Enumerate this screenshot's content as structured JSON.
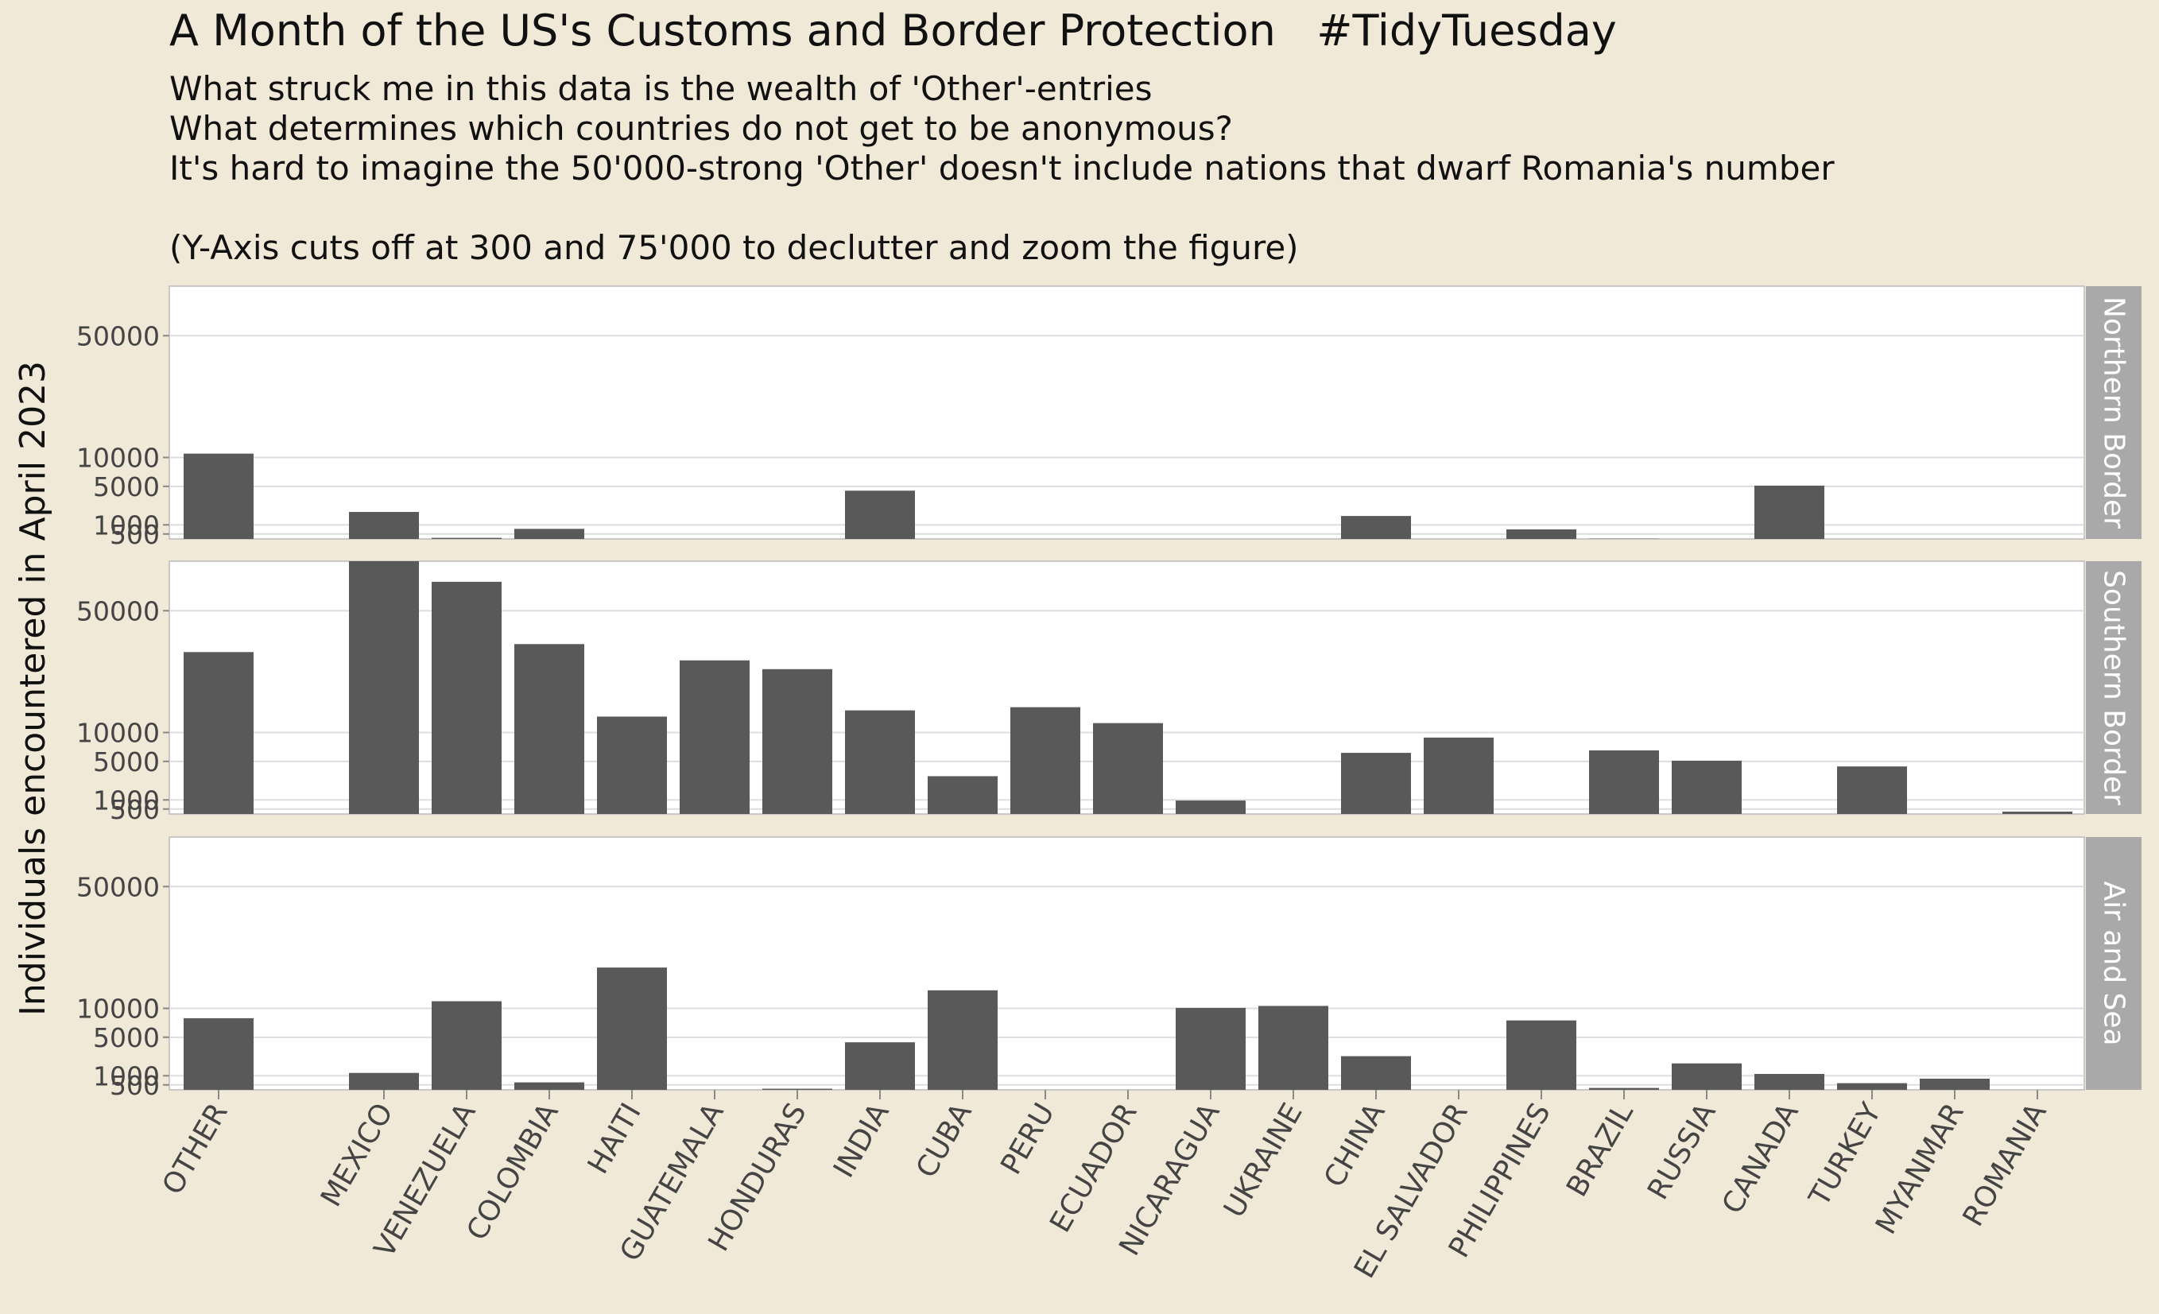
{
  "chart_data": {
    "type": "bar",
    "title": "A Month of the US's Customs and Border Protection   #TidyTuesday",
    "subtitle_lines": [
      "What struck me in this data is the wealth of 'Other'-entries",
      "What determines which countries do not get to be anonymous?",
      "It's hard to imagine the 50'000-strong 'Other' doesn't include nations that dwarf Romania's number",
      "",
      "(Y-Axis cuts off at 300 and 75'000 to declutter and zoom the figure)"
    ],
    "xlabel": "",
    "ylabel": "Individuals encountered in April 2023",
    "y_scale": "sqrt",
    "ylim": [
      300,
      75000
    ],
    "y_ticks": [
      500,
      1000,
      5000,
      10000,
      50000
    ],
    "y_tick_labels": [
      "500",
      "1000",
      "5000",
      "10000",
      "50000"
    ],
    "grid": true,
    "categories": [
      "OTHER",
      "",
      "MEXICO",
      "VENEZUELA",
      "COLOMBIA",
      "HAITI",
      "GUATEMALA",
      "HONDURAS",
      "INDIA",
      "CUBA",
      "PERU",
      "ECUADOR",
      "NICARAGUA",
      "UKRAINE",
      "CHINA",
      "EL SALVADOR",
      "PHILIPPINES",
      "BRAZIL",
      "RUSSIA",
      "CANADA",
      "TURKEY",
      "MYANMAR",
      "ROMANIA"
    ],
    "panels": [
      {
        "name": "Northern Border",
        "values": [
          10800,
          null,
          2000,
          340,
          760,
          null,
          null,
          null,
          4400,
          null,
          null,
          null,
          null,
          null,
          1650,
          null,
          730,
          310,
          null,
          5100,
          null,
          null,
          null
        ]
      },
      {
        "name": "Southern Border",
        "values": [
          33000,
          null,
          75000,
          64000,
          36000,
          13500,
          30000,
          27000,
          15000,
          3100,
          15800,
          12000,
          960,
          null,
          6300,
          9000,
          null,
          6700,
          5100,
          null,
          4300,
          null,
          390
        ]
      },
      {
        "name": "Air and Sea",
        "values": [
          8100,
          null,
          1190,
          11500,
          620,
          20000,
          null,
          340,
          4300,
          14000,
          null,
          null,
          10100,
          10500,
          2650,
          null,
          7700,
          370,
          1950,
          1120,
          580,
          820,
          null
        ]
      }
    ]
  },
  "colors": {
    "background": "#f0e9d8",
    "panel": "#ffffff",
    "bar": "#595959",
    "grid": "#dddddd",
    "strip": "#a9a9a9",
    "strip_text": "#ffffff",
    "axis_text": "#444444",
    "title_text": "#111111"
  }
}
